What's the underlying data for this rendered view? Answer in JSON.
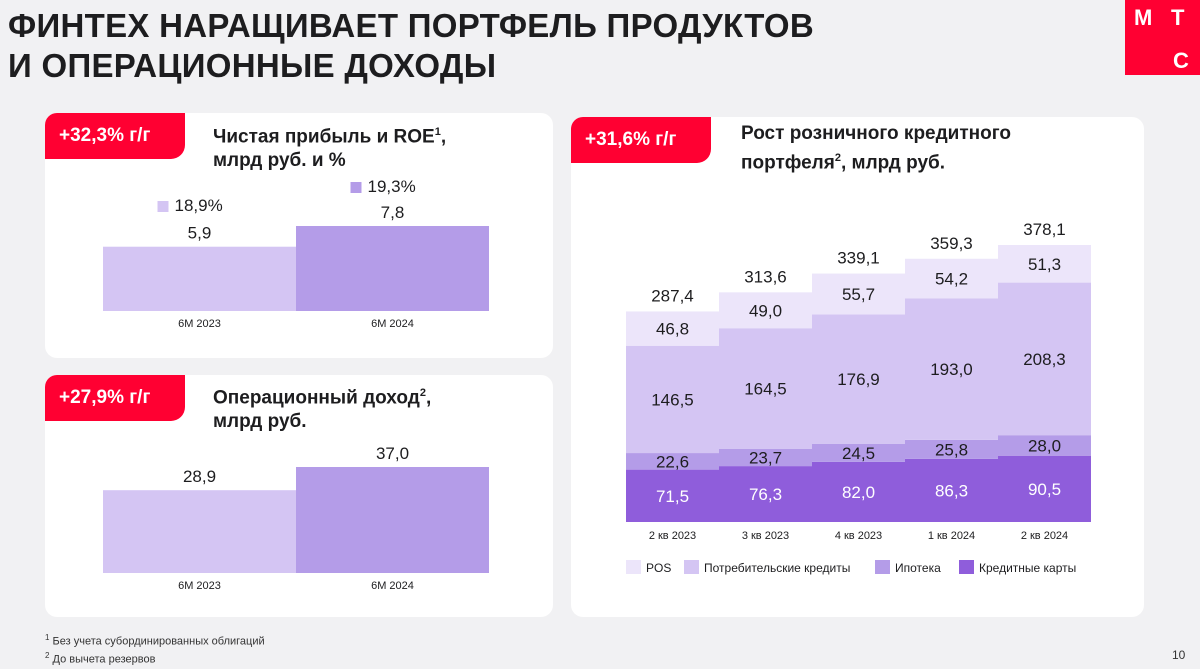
{
  "title": "ФИНТЕХ НАРАЩИВАЕТ ПОРТФЕЛЬ ПРОДУКТОВ\nИ ОПЕРАЦИОННЫЕ ДОХОДЫ",
  "logo": {
    "letters": [
      "М",
      "Т",
      "С"
    ],
    "color": "#ff0032"
  },
  "cards": {
    "profit": {
      "badge": "+32,3% г/г",
      "title": "Чистая прибыль и ROE",
      "title_sup": "1",
      "title_line2": "млрд руб. и %"
    },
    "income": {
      "badge": "+27,9% г/г",
      "title": "Операционный доход",
      "title_sup": "2",
      "title_line2": "млрд руб."
    },
    "portfolio": {
      "badge": "+31,6% г/г",
      "title": "Рост розничного кредитного",
      "title_line2": "портфеля",
      "title_sup": "2",
      "title_rest": ", млрд руб."
    }
  },
  "chart_data": [
    {
      "type": "bar",
      "categories": [
        "6M 2023",
        "6M 2024"
      ],
      "values": [
        5.9,
        7.8
      ],
      "value_labels": [
        "5,9",
        "7,8"
      ],
      "roe": [
        18.9,
        19.3
      ],
      "roe_labels": [
        "18,9%",
        "19,3%"
      ],
      "colors": [
        "#d4c5f3",
        "#b49ce8"
      ],
      "ylim": [
        0,
        7.8
      ]
    },
    {
      "type": "bar",
      "categories": [
        "6M 2023",
        "6M 2024"
      ],
      "values": [
        28.9,
        37.0
      ],
      "value_labels": [
        "28,9",
        "37,0"
      ],
      "colors": [
        "#d4c5f3",
        "#b49ce8"
      ],
      "ylim": [
        0,
        37.0
      ]
    },
    {
      "type": "bar",
      "stacked": true,
      "categories": [
        "2 кв 2023",
        "3 кв 2023",
        "4 кв 2023",
        "1 кв 2024",
        "2 кв 2024"
      ],
      "totals": [
        287.4,
        313.6,
        339.1,
        359.3,
        378.1
      ],
      "total_labels": [
        "287,4",
        "313,6",
        "339,1",
        "359,3",
        "378,1"
      ],
      "series": [
        {
          "name": "Кредитные карты",
          "color": "#8f5ddb",
          "values": [
            71.5,
            76.3,
            82.0,
            86.3,
            90.5
          ],
          "labels": [
            "71,5",
            "76,3",
            "82,0",
            "86,3",
            "90,5"
          ],
          "label_color": "#ffffff"
        },
        {
          "name": "Ипотека",
          "color": "#b49ce8",
          "values": [
            22.6,
            23.7,
            24.5,
            25.8,
            28.0
          ],
          "labels": [
            "22,6",
            "23,7",
            "24,5",
            "25,8",
            "28,0"
          ],
          "label_color": "#1d1d1f"
        },
        {
          "name": "Потребительские кредиты",
          "color": "#d4c5f3",
          "values": [
            146.5,
            164.5,
            176.9,
            193.0,
            208.3
          ],
          "labels": [
            "146,5",
            "164,5",
            "176,9",
            "193,0",
            "208,3"
          ],
          "label_color": "#1d1d1f"
        },
        {
          "name": "POS",
          "color": "#ece5fa",
          "values": [
            46.8,
            49.0,
            55.7,
            54.2,
            51.3
          ],
          "labels": [
            "46,8",
            "49,0",
            "55,7",
            "54,2",
            "51,3"
          ],
          "label_color": "#1d1d1f"
        }
      ],
      "legend_order": [
        "POS",
        "Потребительские кредиты",
        "Ипотека",
        "Кредитные карты"
      ],
      "ylim": [
        0,
        378.1
      ]
    }
  ],
  "footnotes": [
    {
      "sup": "1",
      "text": "Без учета субординированных облигаций"
    },
    {
      "sup": "2",
      "text": "До вычета резервов"
    }
  ],
  "page_number": "10"
}
